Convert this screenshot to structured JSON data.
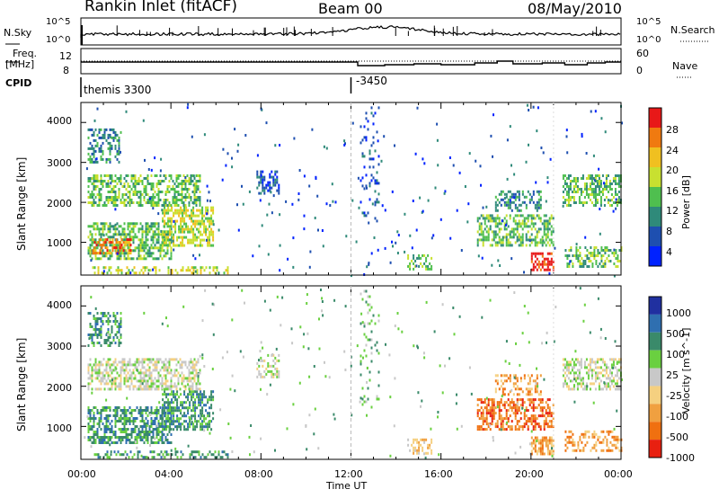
{
  "header": {
    "station": "Rankin Inlet (fitACF)",
    "beam": "Beam 00",
    "date": "08/May/2010"
  },
  "noise_panel": {
    "left_label": "N.Sky",
    "left_ticks": [
      "10^5",
      "10^0"
    ],
    "right_label": "N.Search",
    "right_ticks": [
      "10^5",
      "10^0"
    ]
  },
  "freq_panel": {
    "left_label_1": "Freq.",
    "left_label_2": "[MHz]",
    "left_ticks": [
      "12",
      "8"
    ],
    "right_label": "Nave",
    "right_ticks": [
      "60",
      "0"
    ]
  },
  "cpid_panel": {
    "label": "CPID",
    "entries": [
      {
        "text": "themis 3300",
        "time": 0
      },
      {
        "text": "-3450",
        "time": 12
      }
    ]
  },
  "chart_data": [
    {
      "type": "heatmap",
      "name": "power",
      "ylabel": "Slant Range [km]",
      "yticks": [
        1000,
        2000,
        3000,
        4000
      ],
      "ylim": [
        180,
        4500
      ],
      "xlim": [
        0,
        24
      ],
      "colorbar": {
        "label": "Power [dB]",
        "ticks": [
          "4",
          "8",
          "12",
          "16",
          "20",
          "24",
          "28"
        ],
        "colors": [
          "#0022ff",
          "#1e4fb0",
          "#2f8a7a",
          "#4fbf4f",
          "#c8e030",
          "#f0c020",
          "#f07a10",
          "#e81818"
        ]
      },
      "regions": [
        {
          "t0": 0.3,
          "t1": 4.0,
          "r0": 600,
          "r1": 1500,
          "level": 3,
          "density": 0.6
        },
        {
          "t0": 0.5,
          "t1": 2.2,
          "r0": 700,
          "r1": 1100,
          "level": 6,
          "density": 0.5
        },
        {
          "t0": 3.6,
          "t1": 5.9,
          "r0": 900,
          "r1": 1900,
          "level": 4,
          "density": 0.6
        },
        {
          "t0": 0.3,
          "t1": 5.3,
          "r0": 1950,
          "r1": 2700,
          "level": 3,
          "density": 0.55
        },
        {
          "t0": 0.3,
          "t1": 1.8,
          "r0": 3000,
          "r1": 3850,
          "level": 2,
          "density": 0.45
        },
        {
          "t0": 0.5,
          "t1": 6.5,
          "r0": 200,
          "r1": 400,
          "level": 4,
          "density": 0.35
        },
        {
          "t0": 7.8,
          "t1": 8.8,
          "r0": 2200,
          "r1": 2800,
          "level": 1,
          "density": 0.4
        },
        {
          "t0": 12.4,
          "t1": 13.2,
          "r0": 1500,
          "r1": 4400,
          "level": 1,
          "density": 0.12
        },
        {
          "t0": 14.5,
          "t1": 15.6,
          "r0": 300,
          "r1": 700,
          "level": 3,
          "density": 0.45
        },
        {
          "t0": 17.6,
          "t1": 21.0,
          "r0": 900,
          "r1": 1700,
          "level": 3,
          "density": 0.55
        },
        {
          "t0": 18.4,
          "t1": 20.4,
          "r0": 1800,
          "r1": 2300,
          "level": 2,
          "density": 0.4
        },
        {
          "t0": 20.0,
          "t1": 21.0,
          "r0": 300,
          "r1": 750,
          "level": 7,
          "density": 0.7
        },
        {
          "t0": 21.5,
          "t1": 24.0,
          "r0": 400,
          "r1": 900,
          "level": 3,
          "density": 0.4
        },
        {
          "t0": 21.4,
          "t1": 24.0,
          "r0": 1900,
          "r1": 2700,
          "level": 3,
          "density": 0.5
        }
      ]
    },
    {
      "type": "heatmap",
      "name": "velocity",
      "ylabel": "Slant Range [km]",
      "yticks": [
        1000,
        2000,
        3000,
        4000
      ],
      "ylim": [
        180,
        4500
      ],
      "xlim": [
        0,
        24
      ],
      "xticks": [
        "00:00",
        "04:00",
        "08:00",
        "12:00",
        "16:00",
        "20:00",
        "00:00"
      ],
      "xlabel": "Time UT",
      "colorbar": {
        "label": "Velocity [m s^-1]",
        "ticks": [
          "1000",
          "500",
          "100",
          "25",
          "-25",
          "-100",
          "-500",
          "-1000"
        ],
        "colors": [
          "#2030a0",
          "#2f6fb0",
          "#3a8a6a",
          "#6ad040",
          "#c8c8c8",
          "#f5d080",
          "#f0a040",
          "#f07010",
          "#e82010"
        ]
      },
      "regions": [
        {
          "t0": 0.3,
          "t1": 4.0,
          "r0": 600,
          "r1": 1500,
          "level": 2,
          "density": 0.6
        },
        {
          "t0": 3.6,
          "t1": 5.9,
          "r0": 900,
          "r1": 1900,
          "level": 2,
          "density": 0.6
        },
        {
          "t0": 0.3,
          "t1": 5.3,
          "r0": 1950,
          "r1": 2700,
          "level": 4,
          "density": 0.55
        },
        {
          "t0": 0.3,
          "t1": 1.8,
          "r0": 3000,
          "r1": 3850,
          "level": 2,
          "density": 0.4
        },
        {
          "t0": 0.5,
          "t1": 6.5,
          "r0": 200,
          "r1": 400,
          "level": 2,
          "density": 0.35
        },
        {
          "t0": 7.8,
          "t1": 8.8,
          "r0": 2200,
          "r1": 2800,
          "level": 4,
          "density": 0.4
        },
        {
          "t0": 12.4,
          "t1": 13.2,
          "r0": 1500,
          "r1": 4400,
          "level": 3,
          "density": 0.12
        },
        {
          "t0": 14.5,
          "t1": 15.6,
          "r0": 300,
          "r1": 700,
          "level": 5,
          "density": 0.45
        },
        {
          "t0": 17.6,
          "t1": 21.0,
          "r0": 900,
          "r1": 1700,
          "level": 7,
          "density": 0.55
        },
        {
          "t0": 18.4,
          "t1": 20.4,
          "r0": 1800,
          "r1": 2300,
          "level": 6,
          "density": 0.35
        },
        {
          "t0": 20.0,
          "t1": 21.0,
          "r0": 300,
          "r1": 750,
          "level": 6,
          "density": 0.6
        },
        {
          "t0": 21.5,
          "t1": 24.0,
          "r0": 400,
          "r1": 900,
          "level": 6,
          "density": 0.4
        },
        {
          "t0": 21.4,
          "t1": 24.0,
          "r0": 1900,
          "r1": 2700,
          "level": 4,
          "density": 0.5
        }
      ]
    }
  ]
}
